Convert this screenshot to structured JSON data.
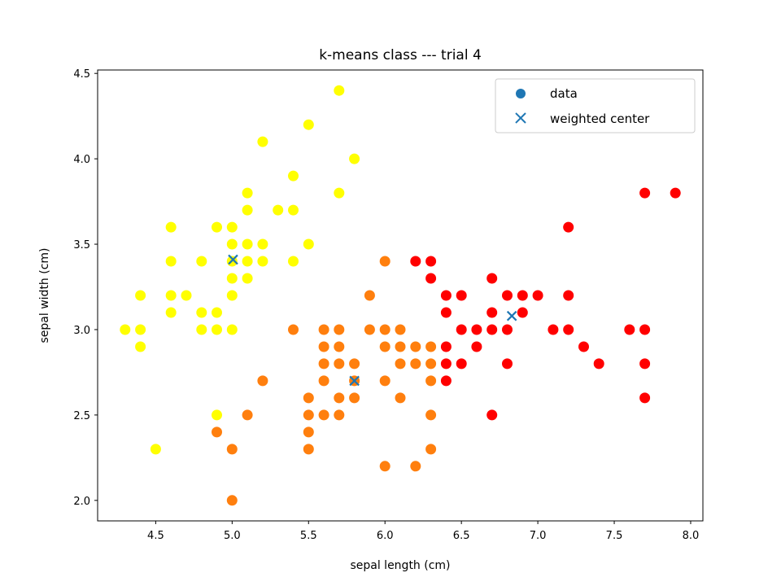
{
  "chart_data": {
    "type": "scatter",
    "title": "k-means class --- trial 4",
    "xlabel": "sepal length (cm)",
    "ylabel": "sepal width (cm)",
    "xlim": [
      4.12,
      8.08
    ],
    "ylim": [
      1.88,
      4.52
    ],
    "xticks": [
      "4.5",
      "5.0",
      "5.5",
      "6.0",
      "6.5",
      "7.0",
      "7.5",
      "8.0"
    ],
    "yticks": [
      "2.0",
      "2.5",
      "3.0",
      "3.5",
      "4.0",
      "4.5"
    ],
    "grid": false,
    "legend_placement": "upper-right",
    "legend": [
      {
        "label": "data",
        "marker": "circle",
        "color": "#1f77b4"
      },
      {
        "label": "weighted center",
        "marker": "x",
        "color": "#1f77b4"
      }
    ],
    "colors": {
      "yellow_cluster": "#ffff00",
      "orange_cluster": "#ff7f0e",
      "red_cluster": "#ff0000",
      "center": "#1f77b4"
    },
    "clusters": [
      {
        "color": "#ffff00",
        "points": [
          [
            5.7,
            4.4
          ],
          [
            5.5,
            4.2
          ],
          [
            5.2,
            4.1
          ],
          [
            5.8,
            4.0
          ],
          [
            5.4,
            3.9
          ],
          [
            5.1,
            3.8
          ],
          [
            5.7,
            3.8
          ],
          [
            5.1,
            3.7
          ],
          [
            5.3,
            3.7
          ],
          [
            5.4,
            3.7
          ],
          [
            4.6,
            3.6
          ],
          [
            4.9,
            3.6
          ],
          [
            5.0,
            3.6
          ],
          [
            5.0,
            3.5
          ],
          [
            5.1,
            3.5
          ],
          [
            5.2,
            3.5
          ],
          [
            5.5,
            3.5
          ],
          [
            4.6,
            3.4
          ],
          [
            4.8,
            3.4
          ],
          [
            5.0,
            3.4
          ],
          [
            5.1,
            3.4
          ],
          [
            5.2,
            3.4
          ],
          [
            5.4,
            3.4
          ],
          [
            5.0,
            3.3
          ],
          [
            5.1,
            3.3
          ],
          [
            4.4,
            3.2
          ],
          [
            4.6,
            3.2
          ],
          [
            4.7,
            3.2
          ],
          [
            5.0,
            3.2
          ],
          [
            4.6,
            3.1
          ],
          [
            4.8,
            3.1
          ],
          [
            4.9,
            3.1
          ],
          [
            4.3,
            3.0
          ],
          [
            4.4,
            3.0
          ],
          [
            4.8,
            3.0
          ],
          [
            4.9,
            3.0
          ],
          [
            5.0,
            3.0
          ],
          [
            4.4,
            2.9
          ],
          [
            4.5,
            2.3
          ],
          [
            4.9,
            2.5
          ]
        ]
      },
      {
        "color": "#ff7f0e",
        "points": [
          [
            6.0,
            3.4
          ],
          [
            5.9,
            3.2
          ],
          [
            5.4,
            3.0
          ],
          [
            5.6,
            3.0
          ],
          [
            5.7,
            3.0
          ],
          [
            5.9,
            3.0
          ],
          [
            6.0,
            3.0
          ],
          [
            6.1,
            3.0
          ],
          [
            5.6,
            2.9
          ],
          [
            5.7,
            2.9
          ],
          [
            6.0,
            2.9
          ],
          [
            6.1,
            2.9
          ],
          [
            6.2,
            2.9
          ],
          [
            6.3,
            2.9
          ],
          [
            5.6,
            2.8
          ],
          [
            5.7,
            2.8
          ],
          [
            5.8,
            2.8
          ],
          [
            6.1,
            2.8
          ],
          [
            6.2,
            2.8
          ],
          [
            6.3,
            2.8
          ],
          [
            5.2,
            2.7
          ],
          [
            5.6,
            2.7
          ],
          [
            5.8,
            2.7
          ],
          [
            6.0,
            2.7
          ],
          [
            6.3,
            2.7
          ],
          [
            5.5,
            2.6
          ],
          [
            5.7,
            2.6
          ],
          [
            5.8,
            2.6
          ],
          [
            6.1,
            2.6
          ],
          [
            5.1,
            2.5
          ],
          [
            5.5,
            2.5
          ],
          [
            5.6,
            2.5
          ],
          [
            5.7,
            2.5
          ],
          [
            6.3,
            2.5
          ],
          [
            4.9,
            2.4
          ],
          [
            5.5,
            2.4
          ],
          [
            5.0,
            2.3
          ],
          [
            5.5,
            2.3
          ],
          [
            6.3,
            2.3
          ],
          [
            6.0,
            2.2
          ],
          [
            6.2,
            2.2
          ],
          [
            5.0,
            2.0
          ]
        ]
      },
      {
        "color": "#ff0000",
        "points": [
          [
            7.7,
            3.8
          ],
          [
            7.9,
            3.8
          ],
          [
            7.2,
            3.6
          ],
          [
            6.2,
            3.4
          ],
          [
            6.3,
            3.4
          ],
          [
            6.3,
            3.3
          ],
          [
            6.7,
            3.3
          ],
          [
            6.4,
            3.2
          ],
          [
            6.5,
            3.2
          ],
          [
            6.8,
            3.2
          ],
          [
            6.9,
            3.2
          ],
          [
            7.0,
            3.2
          ],
          [
            7.2,
            3.2
          ],
          [
            6.4,
            3.1
          ],
          [
            6.7,
            3.1
          ],
          [
            6.9,
            3.1
          ],
          [
            6.5,
            3.0
          ],
          [
            6.6,
            3.0
          ],
          [
            6.7,
            3.0
          ],
          [
            6.8,
            3.0
          ],
          [
            7.1,
            3.0
          ],
          [
            7.2,
            3.0
          ],
          [
            7.6,
            3.0
          ],
          [
            7.7,
            3.0
          ],
          [
            6.4,
            2.9
          ],
          [
            6.6,
            2.9
          ],
          [
            7.3,
            2.9
          ],
          [
            6.4,
            2.8
          ],
          [
            6.5,
            2.8
          ],
          [
            6.8,
            2.8
          ],
          [
            7.4,
            2.8
          ],
          [
            7.7,
            2.8
          ],
          [
            6.4,
            2.7
          ],
          [
            7.7,
            2.6
          ],
          [
            6.7,
            2.5
          ]
        ]
      }
    ],
    "centers": [
      [
        5.006,
        3.41
      ],
      [
        5.8,
        2.7
      ],
      [
        6.83,
        3.08
      ]
    ]
  }
}
